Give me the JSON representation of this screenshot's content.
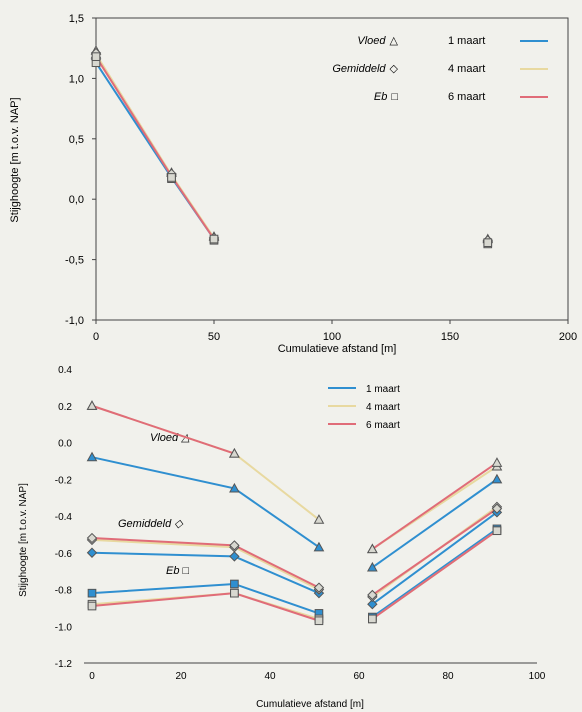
{
  "colors": {
    "1_maart": "#2f8fd0",
    "4_maart": "#e8d9a0",
    "6_maart": "#e06c78",
    "marker_fill": "#d8d8d0",
    "marker_stroke": "#555555",
    "axis": "#444444",
    "background": "#f1f1ec"
  },
  "chart_data": [
    {
      "type": "scatter",
      "xlabel": "Cumulatieve afstand [m]",
      "ylabel": "Stijghoogte [m t.o.v. NAP]",
      "xlim": [
        0,
        200
      ],
      "ylim": [
        -1.0,
        1.5
      ],
      "xticks": [
        0,
        50,
        100,
        150,
        200
      ],
      "yticks": [
        1.5,
        1.0,
        0.5,
        0.0,
        -0.5,
        -1.0
      ],
      "xtick_labels": [
        "0",
        "50",
        "100",
        "150",
        "200"
      ],
      "ytick_labels": [
        "1,5",
        "1,0",
        "0,5",
        "0,0",
        "-0,5",
        "-1,0"
      ],
      "legend_position": "top-right",
      "marker_legend": [
        {
          "label": "Vloed",
          "symbol": "△",
          "marker": "triangle"
        },
        {
          "label": "Gemiddeld",
          "symbol": "◇",
          "marker": "diamond"
        },
        {
          "label": "Eb",
          "symbol": "□",
          "marker": "square"
        }
      ],
      "series": [
        {
          "name": "1 maart",
          "color_key": "1_maart",
          "x": [
            0,
            32,
            50
          ],
          "y": [
            1.13,
            0.18,
            -0.33
          ],
          "points": [
            {
              "x": 0,
              "y": 1.2,
              "m": "triangle"
            },
            {
              "x": 0,
              "y": 1.16,
              "m": "diamond"
            },
            {
              "x": 0,
              "y": 1.13,
              "m": "square"
            },
            {
              "x": 32,
              "y": 0.22,
              "m": "triangle"
            },
            {
              "x": 32,
              "y": 0.2,
              "m": "diamond"
            },
            {
              "x": 32,
              "y": 0.17,
              "m": "square"
            },
            {
              "x": 50,
              "y": -0.31,
              "m": "triangle"
            },
            {
              "x": 50,
              "y": -0.33,
              "m": "diamond"
            },
            {
              "x": 50,
              "y": -0.34,
              "m": "square"
            },
            {
              "x": 166,
              "y": -0.33,
              "m": "triangle"
            },
            {
              "x": 166,
              "y": -0.35,
              "m": "diamond"
            },
            {
              "x": 166,
              "y": -0.37,
              "m": "square"
            }
          ]
        },
        {
          "name": "4 maart",
          "color_key": "4_maart",
          "x": [
            0,
            32,
            50
          ],
          "y": [
            1.2,
            0.2,
            -0.32
          ],
          "points": [
            {
              "x": 0,
              "y": 1.23,
              "m": "triangle"
            },
            {
              "x": 0,
              "y": 1.21,
              "m": "diamond"
            },
            {
              "x": 32,
              "y": 0.21,
              "m": "diamond"
            },
            {
              "x": 50,
              "y": -0.32,
              "m": "diamond"
            },
            {
              "x": 166,
              "y": -0.34,
              "m": "diamond"
            }
          ]
        },
        {
          "name": "6 maart",
          "color_key": "6_maart",
          "x": [
            0,
            32,
            50
          ],
          "y": [
            1.18,
            0.19,
            -0.33
          ],
          "points": [
            {
              "x": 0,
              "y": 1.18,
              "m": "square"
            },
            {
              "x": 32,
              "y": 0.18,
              "m": "square"
            },
            {
              "x": 50,
              "y": -0.33,
              "m": "square"
            },
            {
              "x": 166,
              "y": -0.36,
              "m": "square"
            }
          ]
        }
      ]
    },
    {
      "type": "line",
      "xlabel": "Cumulatieve afstand [m]",
      "ylabel": "Stijghoogte [m t.o.v. NAP]",
      "xlim": [
        0,
        100
      ],
      "ylim": [
        -1.2,
        0.4
      ],
      "xticks": [
        0,
        20,
        40,
        60,
        80,
        100
      ],
      "yticks": [
        0.4,
        0.2,
        0.0,
        -0.2,
        -0.4,
        -0.6,
        -0.8,
        -1.0,
        -1.2
      ],
      "xtick_labels": [
        "0",
        "20",
        "40",
        "60",
        "80",
        "100"
      ],
      "ytick_labels": [
        "0.4",
        "0.2",
        "0.0",
        "-0.2",
        "-0.4",
        "-0.6",
        "-0.8",
        "-1.0",
        "-1.2"
      ],
      "legend_position": "top-center",
      "groups": [
        {
          "label": "Vloed △",
          "marker": "triangle"
        },
        {
          "label": "Gemiddeld ◇",
          "marker": "diamond"
        },
        {
          "label": "Eb □",
          "marker": "square"
        }
      ],
      "series": [
        {
          "name": "1 maart",
          "color_key": "1_maart",
          "marker": "triangle",
          "segments": [
            {
              "x": [
                0,
                32,
                51
              ],
              "y": [
                -0.08,
                -0.25,
                -0.57
              ]
            },
            {
              "x": [
                63,
                91
              ],
              "y": [
                -0.68,
                -0.2
              ]
            }
          ]
        },
        {
          "name": "4 maart",
          "color_key": "4_maart",
          "marker": "triangle",
          "segments": [
            {
              "x": [
                0,
                32,
                51
              ],
              "y": [
                0.2,
                -0.06,
                -0.42
              ]
            },
            {
              "x": [
                63,
                91
              ],
              "y": [
                -0.58,
                -0.13
              ]
            }
          ]
        },
        {
          "name": "6 maart",
          "color_key": "6_maart",
          "marker": "triangle",
          "segments": [
            {
              "x": [
                0,
                32
              ],
              "y": [
                0.2,
                -0.06
              ]
            },
            {
              "x": [
                63,
                91
              ],
              "y": [
                -0.58,
                -0.11
              ]
            }
          ]
        },
        {
          "name": "1 maart",
          "color_key": "1_maart",
          "marker": "diamond",
          "segments": [
            {
              "x": [
                0,
                32,
                51
              ],
              "y": [
                -0.6,
                -0.62,
                -0.82
              ]
            },
            {
              "x": [
                63,
                91
              ],
              "y": [
                -0.88,
                -0.38
              ]
            }
          ]
        },
        {
          "name": "4 maart",
          "color_key": "4_maart",
          "marker": "diamond",
          "segments": [
            {
              "x": [
                0,
                32,
                51
              ],
              "y": [
                -0.53,
                -0.57,
                -0.8
              ]
            },
            {
              "x": [
                63,
                91
              ],
              "y": [
                -0.84,
                -0.35
              ]
            }
          ]
        },
        {
          "name": "6 maart",
          "color_key": "6_maart",
          "marker": "diamond",
          "segments": [
            {
              "x": [
                0,
                32,
                51
              ],
              "y": [
                -0.52,
                -0.56,
                -0.79
              ]
            },
            {
              "x": [
                63,
                91
              ],
              "y": [
                -0.83,
                -0.36
              ]
            }
          ]
        },
        {
          "name": "1 maart",
          "color_key": "1_maart",
          "marker": "square",
          "segments": [
            {
              "x": [
                0,
                32,
                51
              ],
              "y": [
                -0.82,
                -0.77,
                -0.93
              ]
            },
            {
              "x": [
                63,
                91
              ],
              "y": [
                -0.95,
                -0.47
              ]
            }
          ]
        },
        {
          "name": "4 maart",
          "color_key": "4_maart",
          "marker": "square",
          "segments": [
            {
              "x": [
                0,
                32,
                51
              ],
              "y": [
                -0.88,
                -0.82,
                -0.96
              ]
            },
            {
              "x": [
                63,
                91
              ],
              "y": [
                -0.96,
                -0.48
              ]
            }
          ]
        },
        {
          "name": "6 maart",
          "color_key": "6_maart",
          "marker": "square",
          "segments": [
            {
              "x": [
                0,
                32,
                51
              ],
              "y": [
                -0.89,
                -0.82,
                -0.97
              ]
            },
            {
              "x": [
                63,
                91
              ],
              "y": [
                -0.96,
                -0.48
              ]
            }
          ]
        }
      ]
    }
  ]
}
